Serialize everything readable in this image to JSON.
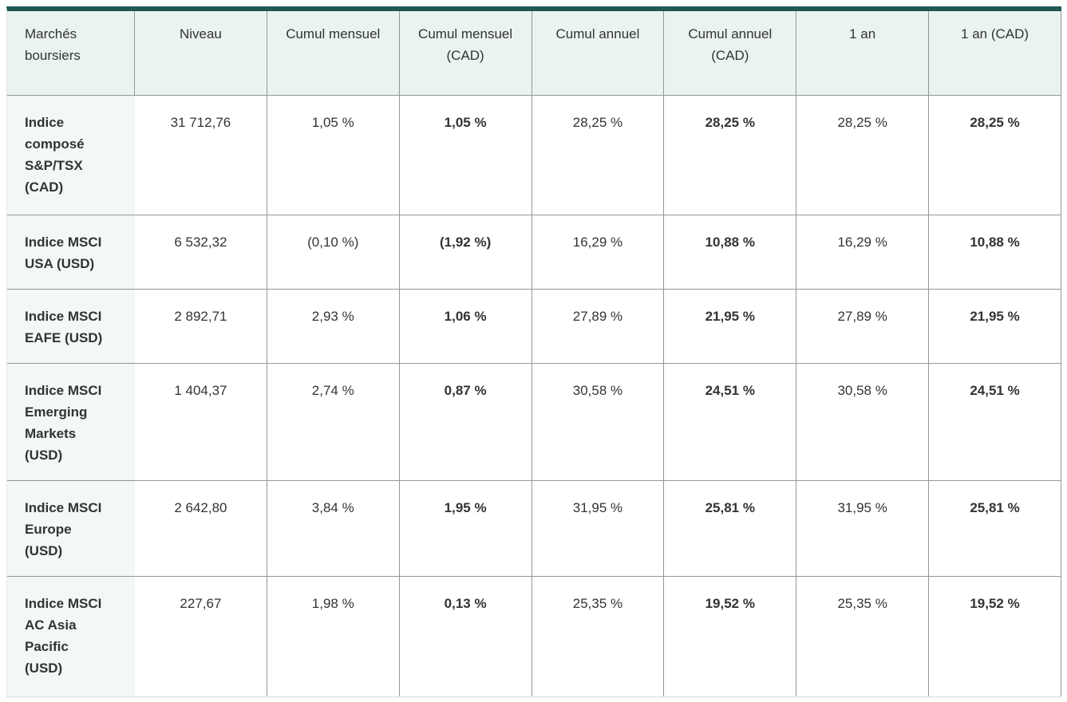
{
  "colors": {
    "accent_top_border": "#1e5954",
    "header_background": "#e9f3f0",
    "label_column_background": "#f1f8f5",
    "grid_line": "#969696",
    "text": "#333333"
  },
  "chart_data": {
    "type": "table",
    "title": "Marchés boursiers",
    "columns": [
      "Marchés boursiers",
      "Niveau",
      "Cumul mensuel",
      "Cumul mensuel (CAD)",
      "Cumul annuel",
      "Cumul annuel (CAD)",
      "1 an",
      "1 an (CAD)"
    ],
    "bold_columns": [
      0,
      3,
      5,
      7
    ],
    "rows": [
      [
        "Indice composé S&P/TSX (CAD)",
        "31 712,76",
        "1,05 %",
        "1,05 %",
        "28,25 %",
        "28,25 %",
        "28,25 %",
        "28,25 %"
      ],
      [
        "Indice MSCI USA (USD)",
        "6 532,32",
        "(0,10 %)",
        "(1,92 %)",
        "16,29 %",
        "10,88 %",
        "16,29 %",
        "10,88 %"
      ],
      [
        "Indice MSCI EAFE (USD)",
        "2 892,71",
        "2,93 %",
        "1,06 %",
        "27,89 %",
        "21,95 %",
        "27,89 %",
        "21,95 %"
      ],
      [
        "Indice MSCI Emerging Markets (USD)",
        "1 404,37",
        "2,74 %",
        "0,87 %",
        "30,58 %",
        "24,51 %",
        "30,58 %",
        "24,51 %"
      ],
      [
        "Indice MSCI Europe (USD)",
        "2 642,80",
        "3,84 %",
        "1,95 %",
        "31,95 %",
        "25,81 %",
        "31,95 %",
        "25,81 %"
      ],
      [
        "Indice MSCI AC Asia Pacific (USD)",
        "227,67",
        "1,98 %",
        "0,13 %",
        "25,35 %",
        "19,52 %",
        "25,35 %",
        "19,52 %"
      ]
    ]
  }
}
